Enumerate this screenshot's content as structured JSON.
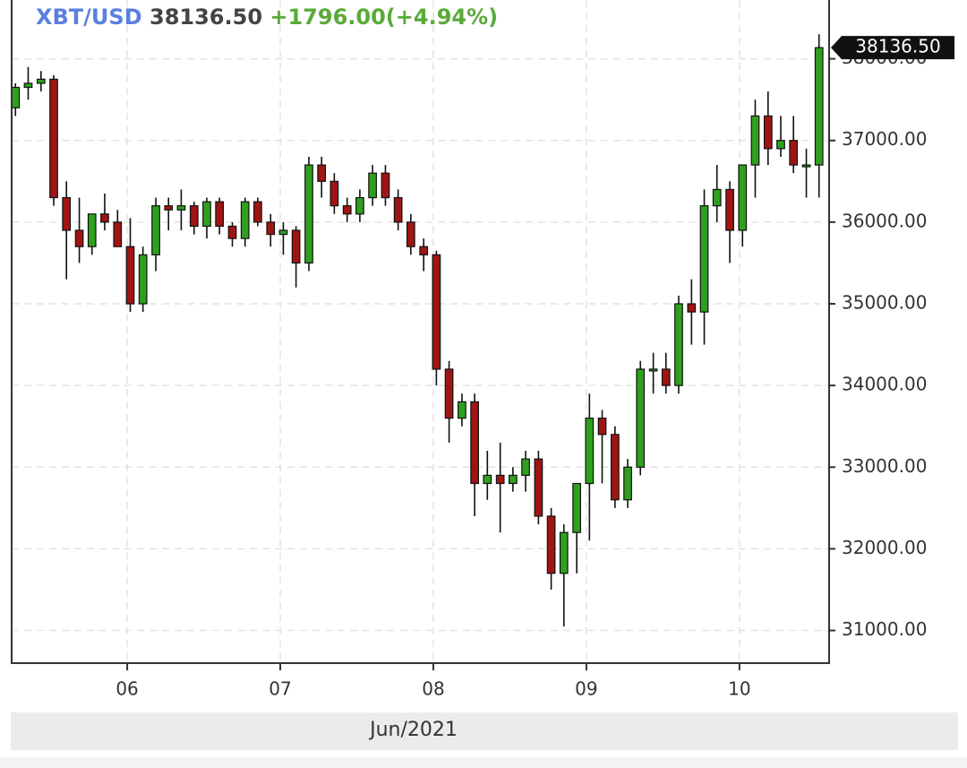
{
  "chart_data": {
    "type": "candlestick",
    "symbol": "XBT/USD",
    "last_price": "38136.50",
    "change": "+1796.00(+4.94%)",
    "x_axis_label": "Jun/2021",
    "up_color": "#2ea01e",
    "down_color": "#a01414",
    "grid": true,
    "xlim": [
      5.245,
      10.58
    ],
    "xticks": [
      {
        "value": 6,
        "label": "06"
      },
      {
        "value": 7,
        "label": "07"
      },
      {
        "value": 8,
        "label": "08"
      },
      {
        "value": 9,
        "label": "09"
      },
      {
        "value": 10,
        "label": "10"
      }
    ],
    "ylim": [
      30600,
      38720
    ],
    "yticks": [
      {
        "value": 31000,
        "label": "31000.00"
      },
      {
        "value": 32000,
        "label": "32000.00"
      },
      {
        "value": 33000,
        "label": "33000.00"
      },
      {
        "value": 34000,
        "label": "34000.00"
      },
      {
        "value": 35000,
        "label": "35000.00"
      },
      {
        "value": 36000,
        "label": "36000.00"
      },
      {
        "value": 37000,
        "label": "37000.00"
      },
      {
        "value": 38000,
        "label": "38000.00"
      }
    ],
    "x": [
      5.27,
      5.353,
      5.437,
      5.52,
      5.603,
      5.687,
      5.77,
      5.853,
      5.937,
      6.02,
      6.103,
      6.187,
      6.27,
      6.353,
      6.437,
      6.52,
      6.603,
      6.687,
      6.77,
      6.853,
      6.937,
      7.02,
      7.103,
      7.187,
      7.27,
      7.353,
      7.437,
      7.52,
      7.603,
      7.687,
      7.77,
      7.853,
      7.937,
      8.02,
      8.103,
      8.187,
      8.27,
      8.353,
      8.437,
      8.52,
      8.603,
      8.687,
      8.77,
      8.853,
      8.937,
      9.02,
      9.103,
      9.187,
      9.27,
      9.353,
      9.437,
      9.52,
      9.603,
      9.687,
      9.77,
      9.853,
      9.937,
      10.02,
      10.103,
      10.187,
      10.27,
      10.353,
      10.437,
      10.52
    ],
    "open": [
      37400,
      37650,
      37700,
      37750,
      36300,
      35900,
      35700,
      36100,
      36000,
      35700,
      35000,
      35600,
      36200,
      36150,
      36200,
      35950,
      36250,
      35950,
      35800,
      36250,
      36000,
      35850,
      35900,
      35500,
      36700,
      36500,
      36200,
      36100,
      36300,
      36600,
      36300,
      36000,
      35700,
      35600,
      34200,
      33600,
      33800,
      32800,
      32900,
      32800,
      32900,
      33100,
      32400,
      31700,
      32200,
      32800,
      33600,
      33400,
      32600,
      33000,
      34200,
      34200,
      34000,
      35000,
      34900,
      36200,
      36400,
      35900,
      36700,
      37300,
      36900,
      37000,
      36700,
      36700
    ],
    "high": [
      37700,
      37900,
      37850,
      37800,
      36500,
      36300,
      36100,
      36350,
      36150,
      36050,
      35700,
      36300,
      36300,
      36400,
      36250,
      36300,
      36300,
      36000,
      36300,
      36300,
      36100,
      36000,
      35950,
      36800,
      36800,
      36600,
      36300,
      36400,
      36700,
      36700,
      36400,
      36100,
      35800,
      35650,
      34300,
      33900,
      33900,
      33200,
      33300,
      33000,
      33200,
      33200,
      32500,
      32300,
      32800,
      33900,
      33700,
      33500,
      33100,
      34300,
      34400,
      34400,
      35100,
      35300,
      36400,
      36700,
      36500,
      36700,
      37500,
      37600,
      37300,
      37300,
      36900,
      38300
    ],
    "low": [
      37300,
      37500,
      37600,
      36200,
      35300,
      35500,
      35600,
      35900,
      35700,
      34900,
      34900,
      35400,
      35900,
      35900,
      35850,
      35800,
      35850,
      35700,
      35700,
      35950,
      35700,
      35600,
      35200,
      35400,
      36300,
      36100,
      36000,
      36000,
      36200,
      36200,
      35900,
      35600,
      35400,
      34000,
      33300,
      33500,
      32400,
      32600,
      32200,
      32700,
      32700,
      32300,
      31500,
      31050,
      31700,
      32100,
      32800,
      32500,
      32500,
      32900,
      33900,
      33900,
      33900,
      34500,
      34500,
      36000,
      35500,
      35700,
      36300,
      36700,
      36800,
      36600,
      36300,
      36300
    ],
    "close": [
      37650,
      37700,
      37750,
      36300,
      35900,
      35700,
      36100,
      36000,
      35700,
      35000,
      35600,
      36200,
      36150,
      36200,
      35950,
      36250,
      35950,
      35800,
      36250,
      36000,
      35850,
      35900,
      35500,
      36700,
      36500,
      36200,
      36100,
      36300,
      36600,
      36300,
      36000,
      35700,
      35600,
      34200,
      33600,
      33800,
      32800,
      32900,
      32800,
      32900,
      33100,
      32400,
      31700,
      32200,
      32800,
      33600,
      33400,
      32600,
      33000,
      34200,
      34200,
      34000,
      35000,
      34900,
      36200,
      36400,
      35900,
      36700,
      37300,
      36900,
      37000,
      36700,
      36700,
      38136.5
    ]
  }
}
